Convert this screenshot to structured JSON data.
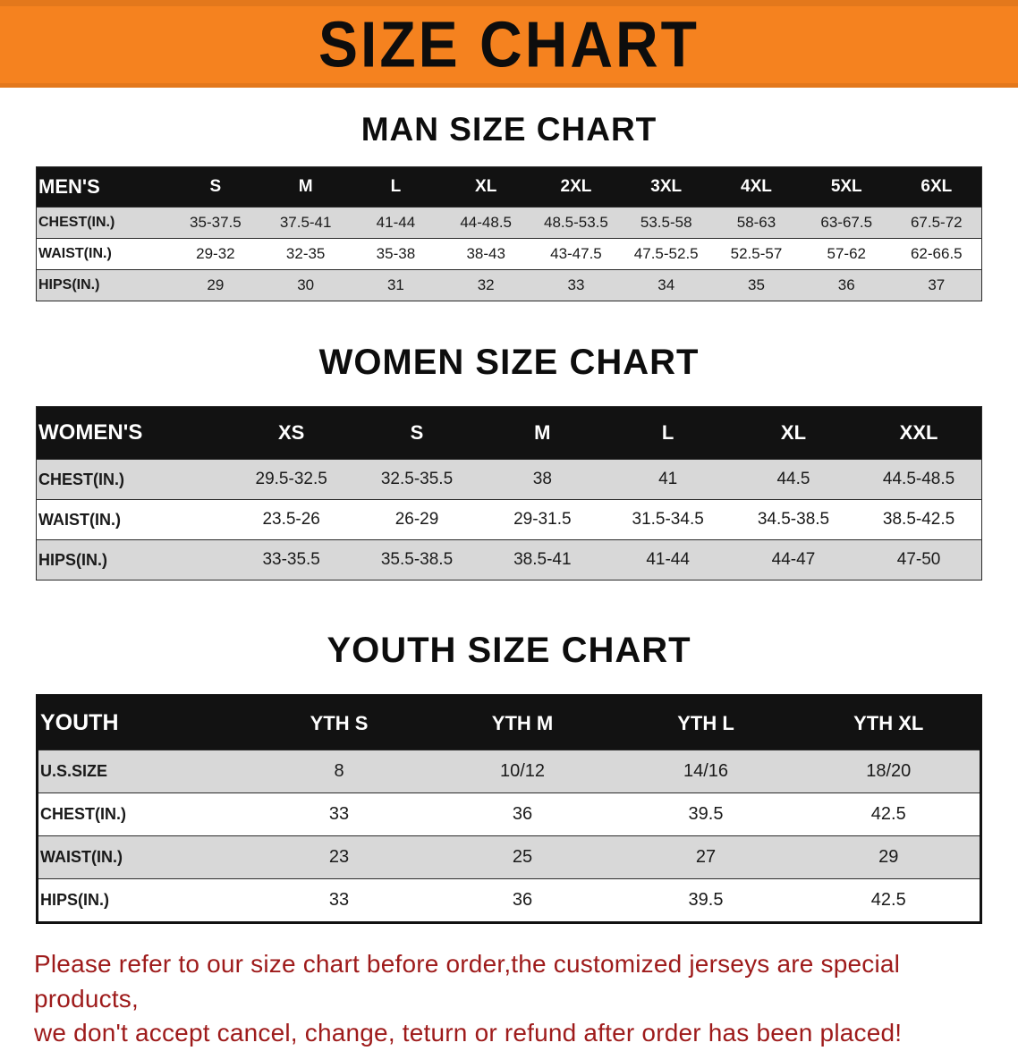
{
  "banner": {
    "title": "SIZE CHART"
  },
  "colors": {
    "banner_bg": "#F5821F",
    "table_header_bg": "#121212",
    "row_shade": "#D8D8D8",
    "disclaimer_red": "#9E1B1B"
  },
  "sections": {
    "men": {
      "heading": "MAN SIZE CHART",
      "table": {
        "header_label": "MEN'S",
        "columns": [
          "S",
          "M",
          "L",
          "XL",
          "2XL",
          "3XL",
          "4XL",
          "5XL",
          "6XL"
        ],
        "rows": [
          {
            "label": "CHEST(IN.)",
            "values": [
              "35-37.5",
              "37.5-41",
              "41-44",
              "44-48.5",
              "48.5-53.5",
              "53.5-58",
              "58-63",
              "63-67.5",
              "67.5-72"
            ]
          },
          {
            "label": "WAIST(IN.)",
            "values": [
              "29-32",
              "32-35",
              "35-38",
              "38-43",
              "43-47.5",
              "47.5-52.5",
              "52.5-57",
              "57-62",
              "62-66.5"
            ]
          },
          {
            "label": "HIPS(IN.)",
            "values": [
              "29",
              "30",
              "31",
              "32",
              "33",
              "34",
              "35",
              "36",
              "37"
            ]
          }
        ]
      }
    },
    "women": {
      "heading": "WOMEN SIZE CHART",
      "table": {
        "header_label": "WOMEN'S",
        "columns": [
          "XS",
          "S",
          "M",
          "L",
          "XL",
          "XXL"
        ],
        "rows": [
          {
            "label": "CHEST(IN.)",
            "values": [
              "29.5-32.5",
              "32.5-35.5",
              "38",
              "41",
              "44.5",
              "44.5-48.5"
            ]
          },
          {
            "label": "WAIST(IN.)",
            "values": [
              "23.5-26",
              "26-29",
              "29-31.5",
              "31.5-34.5",
              "34.5-38.5",
              "38.5-42.5"
            ]
          },
          {
            "label": "HIPS(IN.)",
            "values": [
              "33-35.5",
              "35.5-38.5",
              "38.5-41",
              "41-44",
              "44-47",
              "47-50"
            ]
          }
        ]
      }
    },
    "youth": {
      "heading": "YOUTH SIZE CHART",
      "table": {
        "header_label": "YOUTH",
        "columns": [
          "YTH S",
          "YTH M",
          "YTH L",
          "YTH XL"
        ],
        "rows": [
          {
            "label": "U.S.SIZE",
            "values": [
              "8",
              "10/12",
              "14/16",
              "18/20"
            ]
          },
          {
            "label": "CHEST(IN.)",
            "values": [
              "33",
              "36",
              "39.5",
              "42.5"
            ]
          },
          {
            "label": "WAIST(IN.)",
            "values": [
              "23",
              "25",
              "27",
              "29"
            ]
          },
          {
            "label": "HIPS(IN.)",
            "values": [
              "33",
              "36",
              "39.5",
              "42.5"
            ]
          }
        ]
      }
    }
  },
  "disclaimer": {
    "line1": "Please refer to our size chart before order,the customized jerseys are special products,",
    "line2": "we don't accept cancel, change, teturn or refund after order has been placed!"
  }
}
